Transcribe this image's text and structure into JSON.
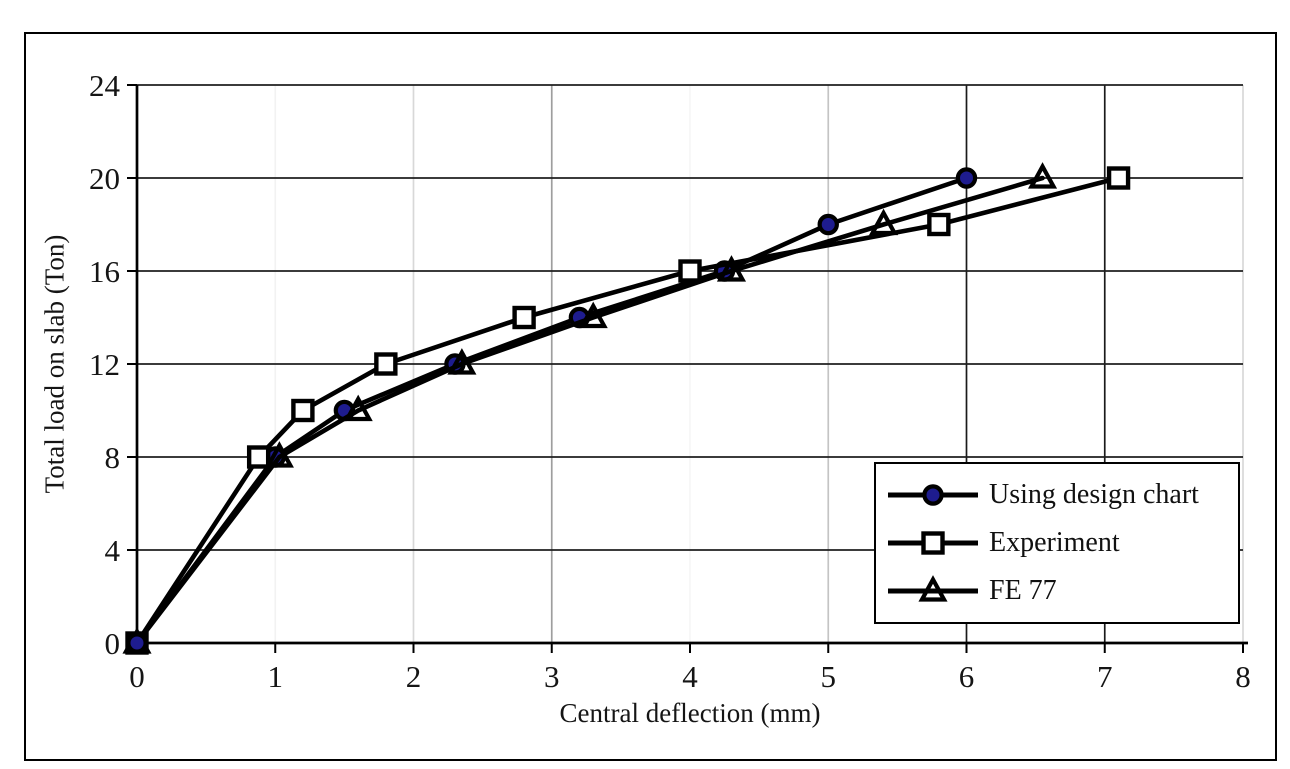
{
  "chart_data": {
    "type": "line",
    "title": "",
    "xlabel": "Central deflection (mm)",
    "ylabel": "Total load on slab (Ton)",
    "xlim": [
      0,
      8
    ],
    "ylim": [
      0,
      24
    ],
    "x_ticks": [
      0,
      1,
      2,
      3,
      4,
      5,
      6,
      7,
      8
    ],
    "y_ticks": [
      0,
      4,
      8,
      12,
      16,
      20,
      24
    ],
    "grid": {
      "h_color": "#1f1f1f",
      "v_colors": {
        "1": "#f2f2f2",
        "2": "#d8d8d8",
        "3": "#9e9e9e",
        "4": "#f6f6f6",
        "5": "#c4c4c4",
        "6": "#1a1a1a",
        "7": "#1a1a1a",
        "8": "#d9d9d9"
      }
    },
    "legend_position": "inside-lower-right",
    "series": [
      {
        "name": "Using design chart",
        "marker": "circle",
        "marker_fill": "#1e1c8f",
        "line_color": "#000000",
        "x": [
          0,
          1.0,
          1.5,
          2.3,
          3.2,
          4.25,
          5.0,
          6.0
        ],
        "y": [
          0,
          8,
          10,
          12,
          14,
          16,
          18,
          20
        ]
      },
      {
        "name": "Experiment",
        "marker": "square",
        "marker_fill": "#ffffff",
        "line_color": "#000000",
        "x": [
          0,
          0.88,
          1.2,
          1.8,
          2.8,
          4.0,
          5.8,
          7.1
        ],
        "y": [
          0,
          8,
          10,
          12,
          14,
          16,
          18,
          20
        ]
      },
      {
        "name": "FE 77",
        "marker": "triangle",
        "marker_fill": "none",
        "line_color": "#000000",
        "x": [
          0,
          1.03,
          1.6,
          2.35,
          3.3,
          4.3,
          5.4,
          6.55
        ],
        "y": [
          0,
          8,
          10,
          12,
          14,
          16,
          18,
          20
        ]
      }
    ]
  }
}
